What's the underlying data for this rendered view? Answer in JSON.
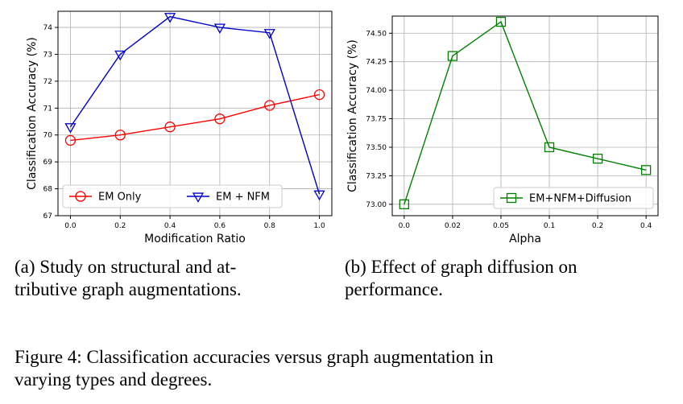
{
  "chart_data": [
    {
      "type": "line",
      "x": [
        0.0,
        0.2,
        0.4,
        0.6,
        0.8,
        1.0
      ],
      "x_tick_labels": [
        "0.0",
        "0.2",
        "0.4",
        "0.6",
        "0.8",
        "1.0"
      ],
      "xlim": [
        -0.05,
        1.05
      ],
      "ylim": [
        67,
        74.6
      ],
      "y_ticks": [
        67,
        68,
        69,
        70,
        71,
        72,
        73,
        74
      ],
      "y_tick_labels": [
        "67",
        "68",
        "69",
        "70",
        "71",
        "72",
        "73",
        "74"
      ],
      "xlabel": "Modification Ratio",
      "ylabel": "Classification Accuracy (%)",
      "grid": true,
      "legend_position": "bottom",
      "series": [
        {
          "name": "EM Only",
          "values": [
            69.8,
            70.0,
            70.3,
            70.6,
            71.1,
            71.5
          ],
          "color": "#ff0000",
          "marker": "circle"
        },
        {
          "name": "EM + NFM",
          "values": [
            70.3,
            73.0,
            74.4,
            74.0,
            73.8,
            67.8
          ],
          "color": "#0000cc",
          "marker": "triangle-down"
        }
      ]
    },
    {
      "type": "line",
      "categories": [
        "0.0",
        "0.02",
        "0.05",
        "0.1",
        "0.2",
        "0.4"
      ],
      "ylim": [
        72.9,
        74.65
      ],
      "y_ticks": [
        73.0,
        73.25,
        73.5,
        73.75,
        74.0,
        74.25,
        74.5
      ],
      "y_tick_labels": [
        "73.00",
        "73.25",
        "73.50",
        "73.75",
        "74.00",
        "74.25",
        "74.50"
      ],
      "xlabel": "Alpha",
      "ylabel": "Classification Accuracy (%)",
      "grid": true,
      "legend_position": "bottom-right",
      "series": [
        {
          "name": "EM+NFM+Diffusion",
          "values": [
            73.0,
            74.3,
            74.6,
            73.5,
            73.4,
            73.3
          ],
          "color": "#008000",
          "marker": "square"
        }
      ]
    }
  ],
  "captions": {
    "a": [
      "(a) Study on structural and at-",
      "tributive graph augmentations."
    ],
    "b": [
      "(b) Effect of graph diffusion on",
      "performance."
    ],
    "figure": [
      "Figure 4: Classification accuracies versus graph augmentation in",
      "varying types and degrees."
    ]
  }
}
